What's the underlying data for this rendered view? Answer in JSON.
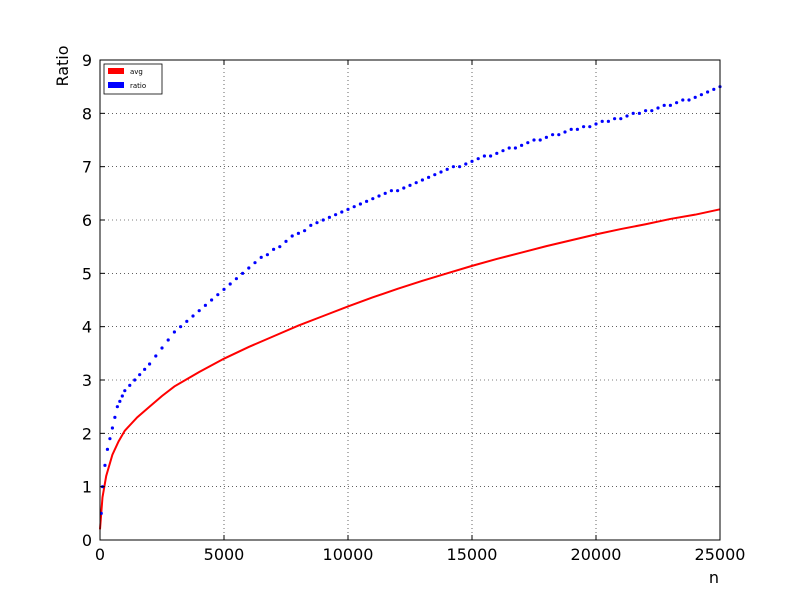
{
  "chart_data": {
    "type": "scatter",
    "title": "",
    "xlabel": "n",
    "ylabel": "Ratio",
    "xlim": [
      0,
      25000
    ],
    "ylim": [
      0,
      9
    ],
    "xticks": [
      0,
      5000,
      10000,
      15000,
      20000,
      25000
    ],
    "yticks": [
      0,
      1,
      2,
      3,
      4,
      5,
      6,
      7,
      8,
      9
    ],
    "grid": true,
    "legend": {
      "placement": "top-left",
      "entries": [
        "avg",
        "ratio"
      ]
    },
    "series": [
      {
        "name": "avg",
        "kind": "line",
        "color": "#ff0000",
        "x": [
          0,
          100,
          250,
          500,
          750,
          1000,
          1500,
          2000,
          2500,
          3000,
          4000,
          5000,
          6000,
          7000,
          8000,
          9000,
          10000,
          11000,
          12000,
          13000,
          14000,
          15000,
          16000,
          17000,
          18000,
          19000,
          20000,
          21000,
          22000,
          23000,
          24000,
          25000
        ],
        "y": [
          0.2,
          0.8,
          1.2,
          1.6,
          1.85,
          2.05,
          2.3,
          2.5,
          2.7,
          2.88,
          3.15,
          3.4,
          3.62,
          3.82,
          4.02,
          4.2,
          4.38,
          4.55,
          4.71,
          4.86,
          5.0,
          5.14,
          5.27,
          5.39,
          5.51,
          5.62,
          5.73,
          5.83,
          5.92,
          6.02,
          6.1,
          6.2
        ]
      },
      {
        "name": "ratio",
        "kind": "scatter",
        "color": "#0000ff",
        "x": [
          50,
          100,
          200,
          300,
          400,
          500,
          600,
          700,
          800,
          900,
          1000,
          1200,
          1400,
          1600,
          1800,
          2000,
          2250,
          2500,
          2750,
          3000,
          3250,
          3500,
          3750,
          4000,
          4250,
          4500,
          4750,
          5000,
          5250,
          5500,
          5750,
          6000,
          6250,
          6500,
          6750,
          7000,
          7250,
          7500,
          7750,
          8000,
          8250,
          8500,
          8750,
          9000,
          9250,
          9500,
          9750,
          10000,
          10250,
          10500,
          10750,
          11000,
          11250,
          11500,
          11750,
          12000,
          12250,
          12500,
          12750,
          13000,
          13250,
          13500,
          13750,
          14000,
          14250,
          14500,
          14750,
          15000,
          15250,
          15500,
          15750,
          16000,
          16250,
          16500,
          16750,
          17000,
          17250,
          17500,
          17750,
          18000,
          18250,
          18500,
          18750,
          19000,
          19250,
          19500,
          19750,
          20000,
          20250,
          20500,
          20750,
          21000,
          21250,
          21500,
          21750,
          22000,
          22250,
          22500,
          22750,
          23000,
          23250,
          23500,
          23750,
          24000,
          24250,
          24500,
          24750,
          25000
        ],
        "y": [
          0.5,
          1.0,
          1.4,
          1.7,
          1.9,
          2.1,
          2.3,
          2.5,
          2.6,
          2.7,
          2.8,
          2.9,
          3.0,
          3.1,
          3.2,
          3.3,
          3.45,
          3.6,
          3.75,
          3.9,
          4.0,
          4.1,
          4.2,
          4.3,
          4.4,
          4.5,
          4.6,
          4.7,
          4.8,
          4.9,
          5.0,
          5.1,
          5.2,
          5.3,
          5.35,
          5.45,
          5.5,
          5.6,
          5.7,
          5.75,
          5.8,
          5.9,
          5.95,
          6.0,
          6.05,
          6.1,
          6.15,
          6.2,
          6.25,
          6.3,
          6.35,
          6.4,
          6.45,
          6.5,
          6.55,
          6.55,
          6.6,
          6.65,
          6.7,
          6.75,
          6.8,
          6.85,
          6.9,
          6.95,
          7.0,
          7.0,
          7.05,
          7.1,
          7.15,
          7.2,
          7.2,
          7.25,
          7.3,
          7.35,
          7.35,
          7.4,
          7.45,
          7.5,
          7.5,
          7.55,
          7.6,
          7.6,
          7.65,
          7.7,
          7.7,
          7.75,
          7.75,
          7.8,
          7.85,
          7.85,
          7.9,
          7.9,
          7.95,
          8.0,
          8.0,
          8.05,
          8.05,
          8.1,
          8.15,
          8.15,
          8.2,
          8.25,
          8.25,
          8.3,
          8.35,
          8.4,
          8.45,
          8.5
        ]
      }
    ]
  }
}
